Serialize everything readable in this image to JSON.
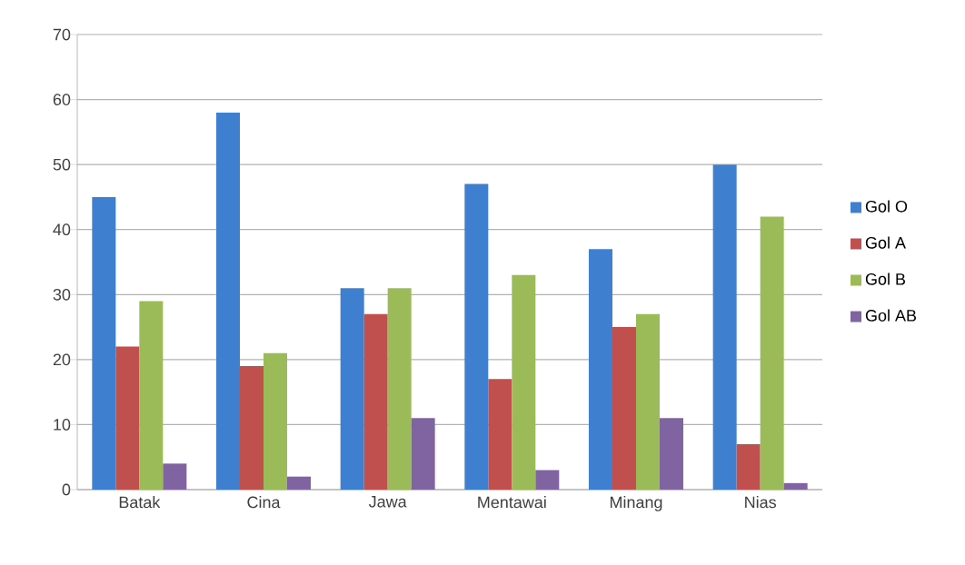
{
  "chart_data": {
    "type": "bar",
    "categories": [
      "Batak",
      "Cina",
      "Jawa",
      "Mentawai",
      "Minang",
      "Nias"
    ],
    "series": [
      {
        "name": "Gol O",
        "color": "#3f7fd0",
        "values": [
          45,
          58,
          31,
          47,
          37,
          50
        ]
      },
      {
        "name": "Gol A",
        "color": "#c0504d",
        "values": [
          22,
          19,
          27,
          17,
          25,
          7
        ]
      },
      {
        "name": "Gol B",
        "color": "#9bbb59",
        "values": [
          29,
          21,
          31,
          33,
          27,
          42
        ]
      },
      {
        "name": "Gol AB",
        "color": "#8064a2",
        "values": [
          4,
          2,
          11,
          3,
          11,
          1
        ]
      }
    ],
    "ylim": [
      0,
      70
    ],
    "yticks": [
      0,
      10,
      20,
      30,
      40,
      50,
      60,
      70
    ],
    "grid": "y",
    "legend": "right"
  }
}
